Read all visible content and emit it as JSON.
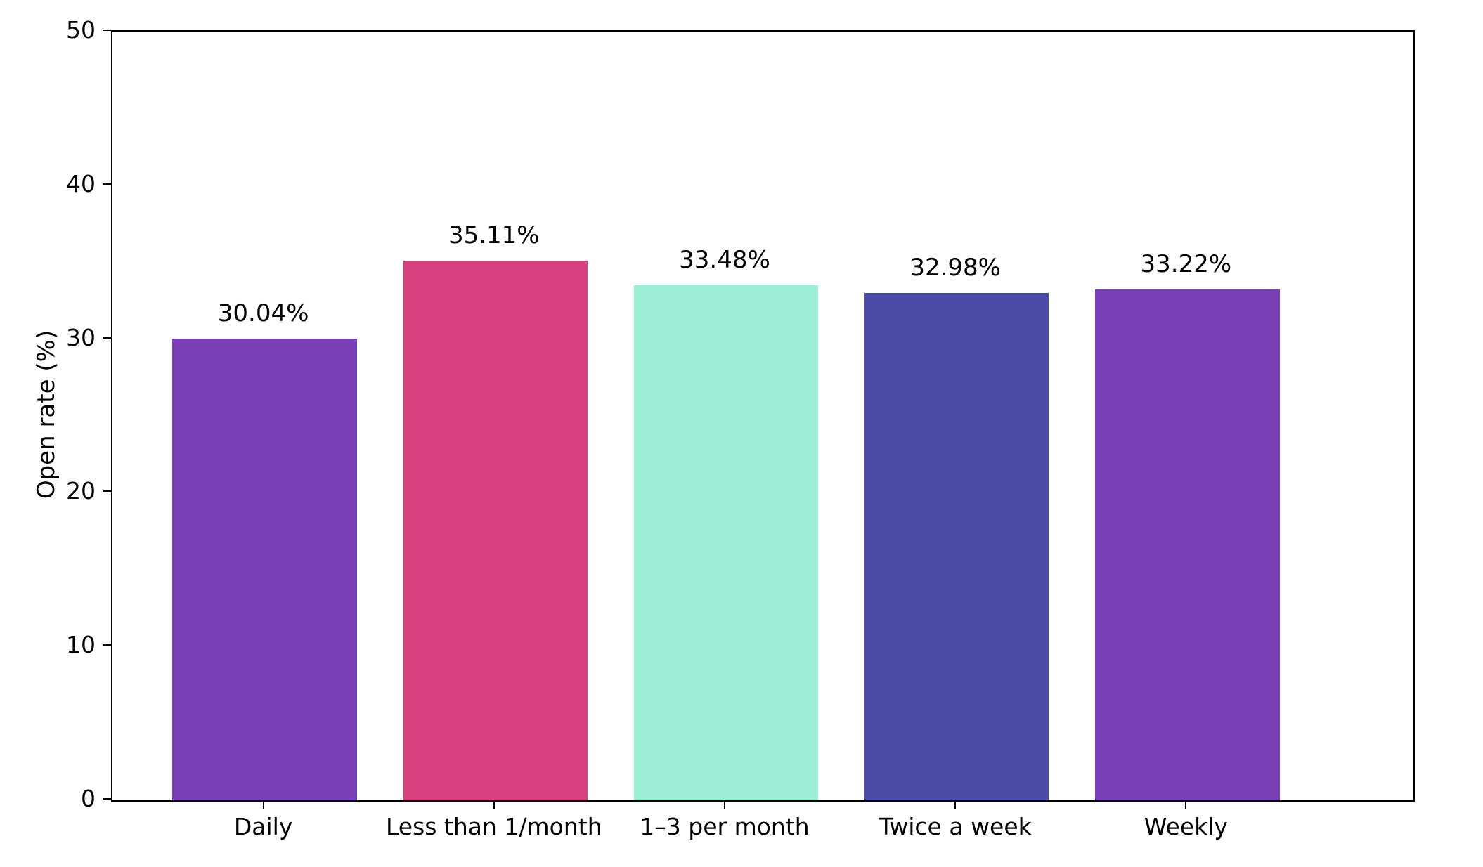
{
  "chart_data": {
    "type": "bar",
    "title": "",
    "xlabel": "",
    "ylabel": "Open rate (%)",
    "categories": [
      "Daily",
      "Less than 1/month",
      "1–3 per month",
      "Twice a week",
      "Weekly"
    ],
    "values": [
      30.04,
      35.11,
      33.48,
      32.98,
      33.22
    ],
    "value_labels": [
      "30.04%",
      "35.11%",
      "33.48%",
      "32.98%",
      "33.22%"
    ],
    "bar_colors": [
      "#7A3FB4",
      "#D8417F",
      "#9CEDD6",
      "#4C4BA8",
      "#7A3FB4"
    ],
    "ylim": [
      0,
      50
    ],
    "yticks": [
      "0",
      "10",
      "20",
      "30",
      "40",
      "50"
    ],
    "grid": false,
    "legend_position": "none",
    "axis_color": "#000000",
    "text_color": "#000000"
  }
}
